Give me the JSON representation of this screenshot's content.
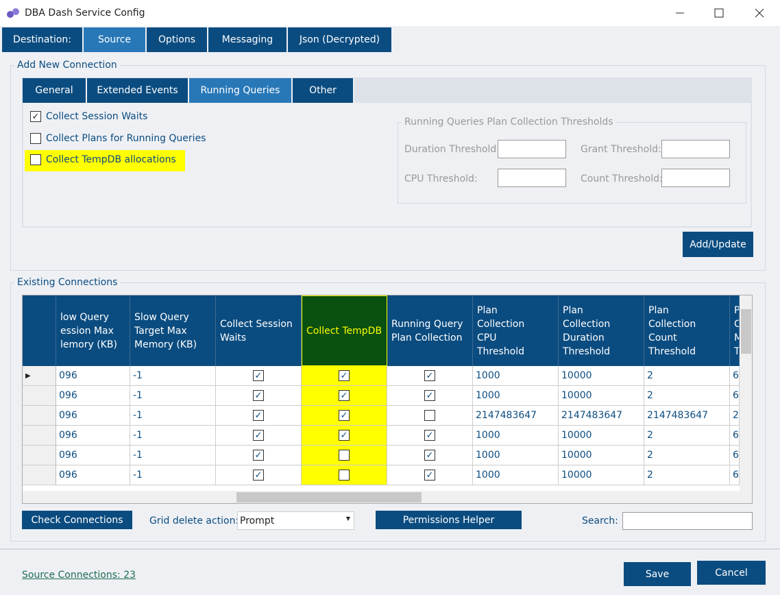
{
  "window": {
    "title": "DBA Dash Service Config"
  },
  "tabs": [
    "Destination:",
    "Source",
    "Options",
    "Messaging",
    "Json (Decrypted)"
  ],
  "add_connection": {
    "title": "Add New Connection",
    "tabs": [
      "General",
      "Extended Events",
      "Running Queries",
      "Other"
    ],
    "checkboxes": [
      {
        "label": "Collect Session Waits",
        "checked": true
      },
      {
        "label": "Collect Plans for Running Queries",
        "checked": false
      },
      {
        "label": "Collect TempDB allocations",
        "checked": false
      }
    ],
    "thresholds": {
      "title": "Running Queries Plan Collection Thresholds",
      "fields": [
        "Duration Threshold:",
        "Grant Threshold:",
        "CPU Threshold:",
        "Count Threshold:"
      ]
    },
    "add_button": "Add/Update"
  },
  "existing": {
    "title": "Existing Connections",
    "columns": [
      "low Query\nession Max\nlemory (KB)",
      "Slow Query\nTarget Max\nMemory (KB)",
      "Collect Session\nWaits",
      "Collect TempDB",
      "Running Query\nPlan Collection",
      "Plan\nCollection\nCPU\nThreshold",
      "Plan\nCollection\nDuration\nThreshold",
      "Plan\nCollection\nCount\nThreshold",
      "P\nC\nM\nT"
    ],
    "rows": [
      [
        "096",
        "-1",
        true,
        true,
        true,
        "1000",
        "10000",
        "2",
        "6"
      ],
      [
        "096",
        "-1",
        true,
        true,
        true,
        "1000",
        "10000",
        "2",
        "6"
      ],
      [
        "096",
        "-1",
        true,
        true,
        false,
        "2147483647",
        "2147483647",
        "2147483647",
        "2"
      ],
      [
        "096",
        "-1",
        true,
        true,
        true,
        "1000",
        "10000",
        "2",
        "6"
      ],
      [
        "096",
        "-1",
        true,
        false,
        true,
        "1000",
        "10000",
        "2",
        "6"
      ],
      [
        "096",
        "-1",
        true,
        false,
        true,
        "1000",
        "10000",
        "2",
        "6"
      ]
    ]
  },
  "controls": {
    "check_button": "Check Connections",
    "delete_label": "Grid delete action:",
    "delete_value": "Prompt",
    "permissions_button": "Permissions Helper",
    "search_label": "Search:"
  },
  "footer": {
    "link": "Source Connections: 23",
    "save": "Save",
    "cancel": "Cancel"
  }
}
